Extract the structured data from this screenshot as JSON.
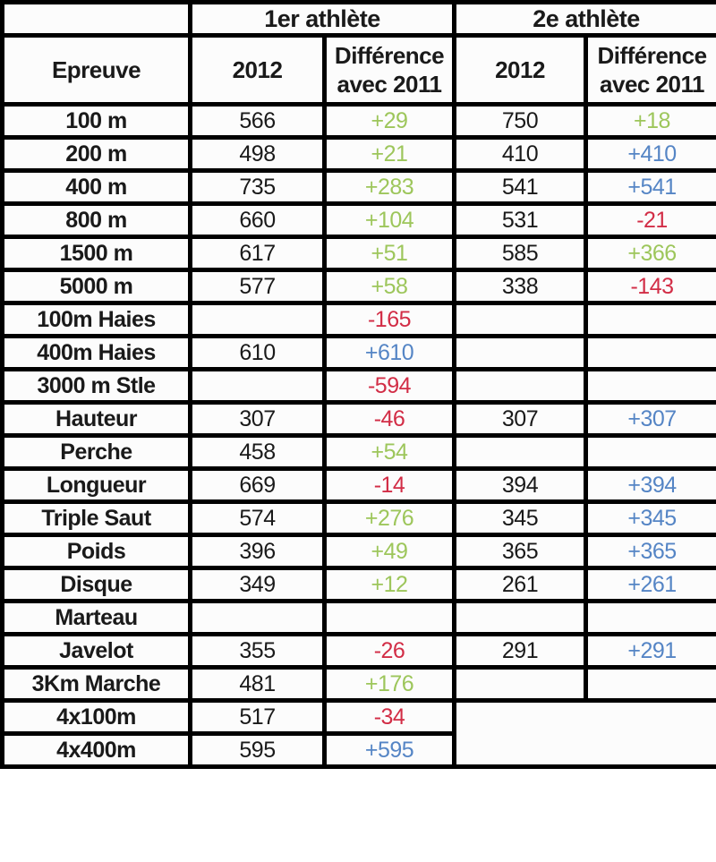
{
  "colors": {
    "green": "#9DC65B",
    "blue": "#5585C5",
    "red": "#D22D46",
    "text": "#1A1A1A",
    "border": "#000000",
    "cell_bg": "#FCFCFC",
    "blackout": "#000000"
  },
  "header": {
    "athlete1": "1er athlète",
    "athlete2": "2e athlète",
    "event": "Epreuve",
    "year1": "2012",
    "diff1": "Différence avec 2011",
    "year2": "2012",
    "diff2": "Différence avec 2011"
  },
  "rows": [
    {
      "event": "100 m",
      "a1_2012": "566",
      "a1_diff": "+29",
      "a1_color": "green",
      "a2_2012": "750",
      "a2_diff": "+18",
      "a2_color": "green"
    },
    {
      "event": "200 m",
      "a1_2012": "498",
      "a1_diff": "+21",
      "a1_color": "green",
      "a2_2012": "410",
      "a2_diff": "+410",
      "a2_color": "blue"
    },
    {
      "event": "400 m",
      "a1_2012": "735",
      "a1_diff": "+283",
      "a1_color": "green",
      "a2_2012": "541",
      "a2_diff": "+541",
      "a2_color": "blue"
    },
    {
      "event": "800 m",
      "a1_2012": "660",
      "a1_diff": "+104",
      "a1_color": "green",
      "a2_2012": "531",
      "a2_diff": "-21",
      "a2_color": "red"
    },
    {
      "event": "1500 m",
      "a1_2012": "617",
      "a1_diff": "+51",
      "a1_color": "green",
      "a2_2012": "585",
      "a2_diff": "+366",
      "a2_color": "green"
    },
    {
      "event": "5000 m",
      "a1_2012": "577",
      "a1_diff": "+58",
      "a1_color": "green",
      "a2_2012": "338",
      "a2_diff": "-143",
      "a2_color": "red"
    },
    {
      "event": "100m Haies",
      "a1_2012": "",
      "a1_diff": "-165",
      "a1_color": "red",
      "a2_2012": "",
      "a2_diff": "",
      "a2_color": ""
    },
    {
      "event": "400m Haies",
      "a1_2012": "610",
      "a1_diff": "+610",
      "a1_color": "blue",
      "a2_2012": "",
      "a2_diff": "",
      "a2_color": ""
    },
    {
      "event": "3000 m Stle",
      "a1_2012": "",
      "a1_diff": "-594",
      "a1_color": "red",
      "a2_2012": "",
      "a2_diff": "",
      "a2_color": ""
    },
    {
      "event": "Hauteur",
      "a1_2012": "307",
      "a1_diff": "-46",
      "a1_color": "red",
      "a2_2012": "307",
      "a2_diff": "+307",
      "a2_color": "blue"
    },
    {
      "event": "Perche",
      "a1_2012": "458",
      "a1_diff": "+54",
      "a1_color": "green",
      "a2_2012": "",
      "a2_diff": "",
      "a2_color": ""
    },
    {
      "event": "Longueur",
      "a1_2012": "669",
      "a1_diff": "-14",
      "a1_color": "red",
      "a2_2012": "394",
      "a2_diff": "+394",
      "a2_color": "blue"
    },
    {
      "event": "Triple Saut",
      "a1_2012": "574",
      "a1_diff": "+276",
      "a1_color": "green",
      "a2_2012": "345",
      "a2_diff": "+345",
      "a2_color": "blue"
    },
    {
      "event": "Poids",
      "a1_2012": "396",
      "a1_diff": "+49",
      "a1_color": "green",
      "a2_2012": "365",
      "a2_diff": "+365",
      "a2_color": "blue"
    },
    {
      "event": "Disque",
      "a1_2012": "349",
      "a1_diff": "+12",
      "a1_color": "green",
      "a2_2012": "261",
      "a2_diff": "+261",
      "a2_color": "blue"
    },
    {
      "event": "Marteau",
      "a1_2012": "",
      "a1_diff": "",
      "a1_color": "",
      "a2_2012": "",
      "a2_diff": "",
      "a2_color": ""
    },
    {
      "event": "Javelot",
      "a1_2012": "355",
      "a1_diff": "-26",
      "a1_color": "red",
      "a2_2012": "291",
      "a2_diff": "+291",
      "a2_color": "blue"
    },
    {
      "event": "3Km Marche",
      "a1_2012": "481",
      "a1_diff": "+176",
      "a1_color": "green",
      "a2_2012": "",
      "a2_diff": "",
      "a2_color": ""
    },
    {
      "event": "4x100m",
      "a1_2012": "517",
      "a1_diff": "-34",
      "a1_color": "red",
      "blackout": true
    },
    {
      "event": "4x400m",
      "a1_2012": "595",
      "a1_diff": "+595",
      "a1_color": "blue",
      "blackout": true
    }
  ]
}
